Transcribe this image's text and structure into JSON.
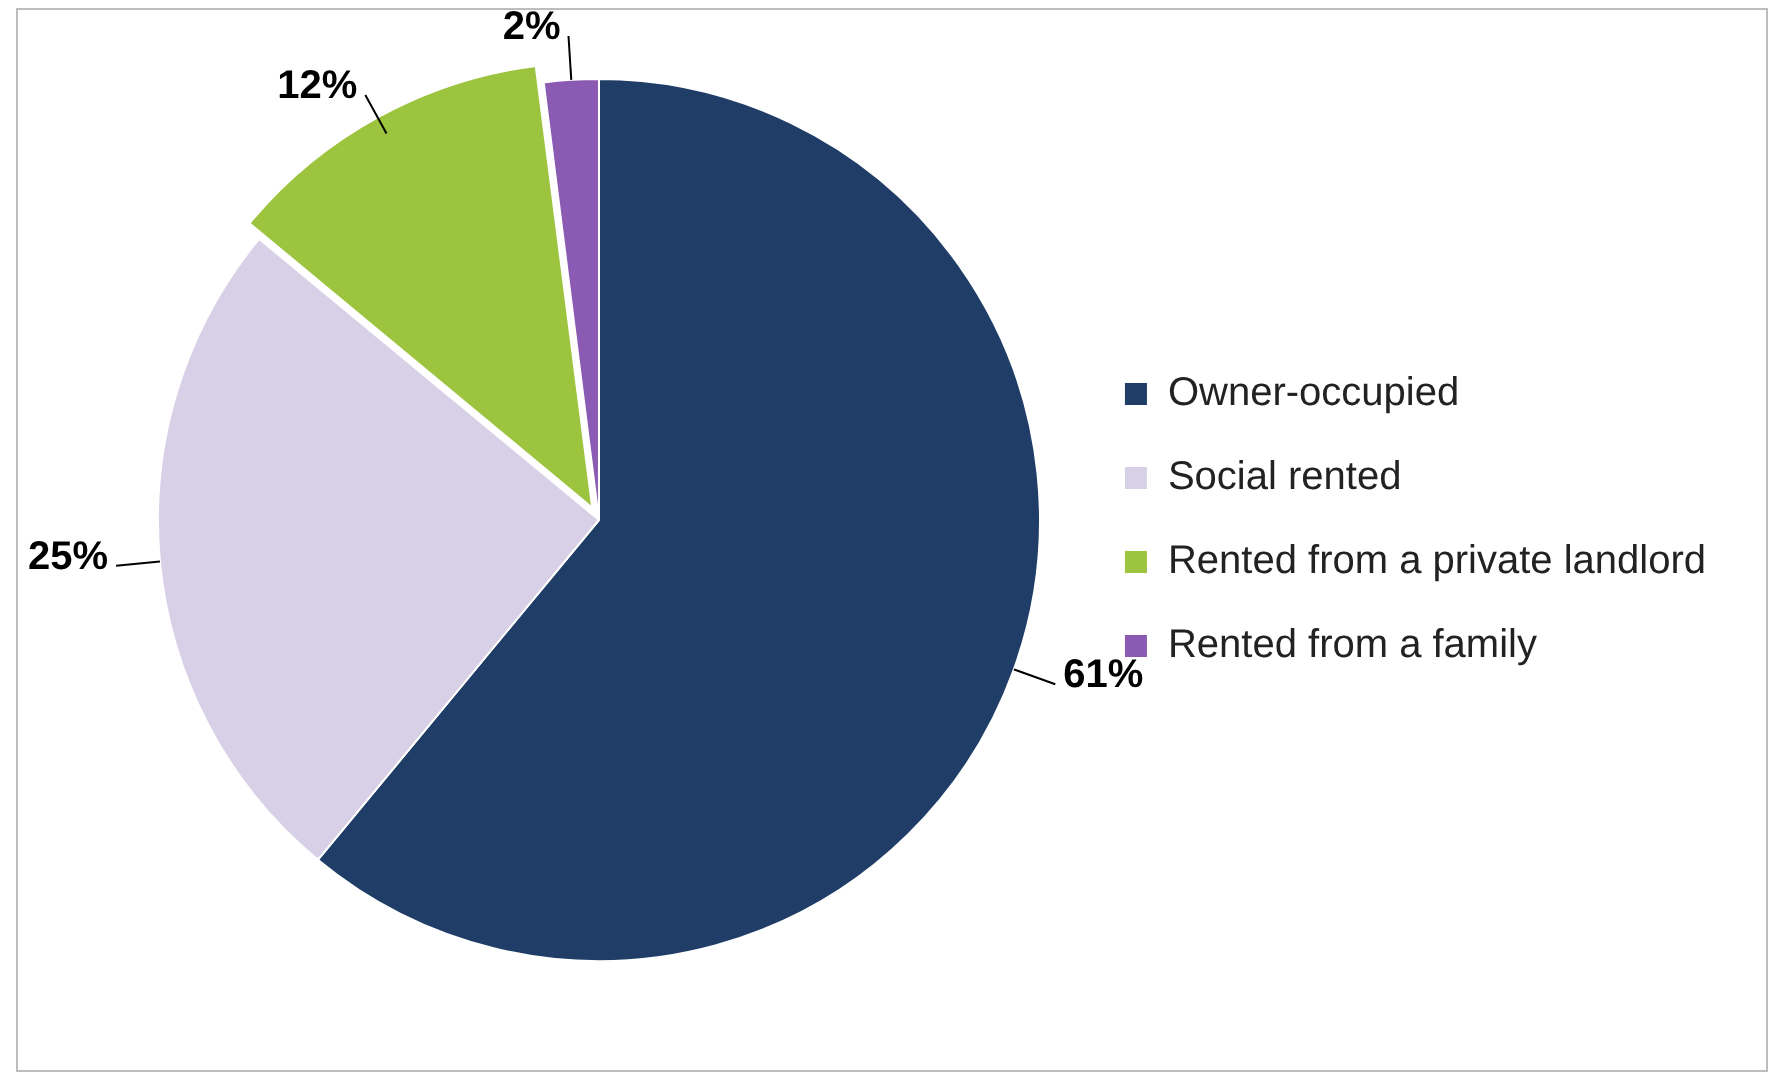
{
  "chart_data": {
    "type": "pie",
    "categories": [
      "Owner-occupied",
      "Social rented",
      "Rented from a private landlord",
      "Rented from a family"
    ],
    "values": [
      61,
      25,
      12,
      2
    ],
    "colors": [
      "#1f3d66",
      "#d8d0e6",
      "#9cc43e",
      "#8b5bb3"
    ],
    "value_labels": [
      "61%",
      "25%",
      "12%",
      "2%"
    ],
    "legend": "right"
  }
}
